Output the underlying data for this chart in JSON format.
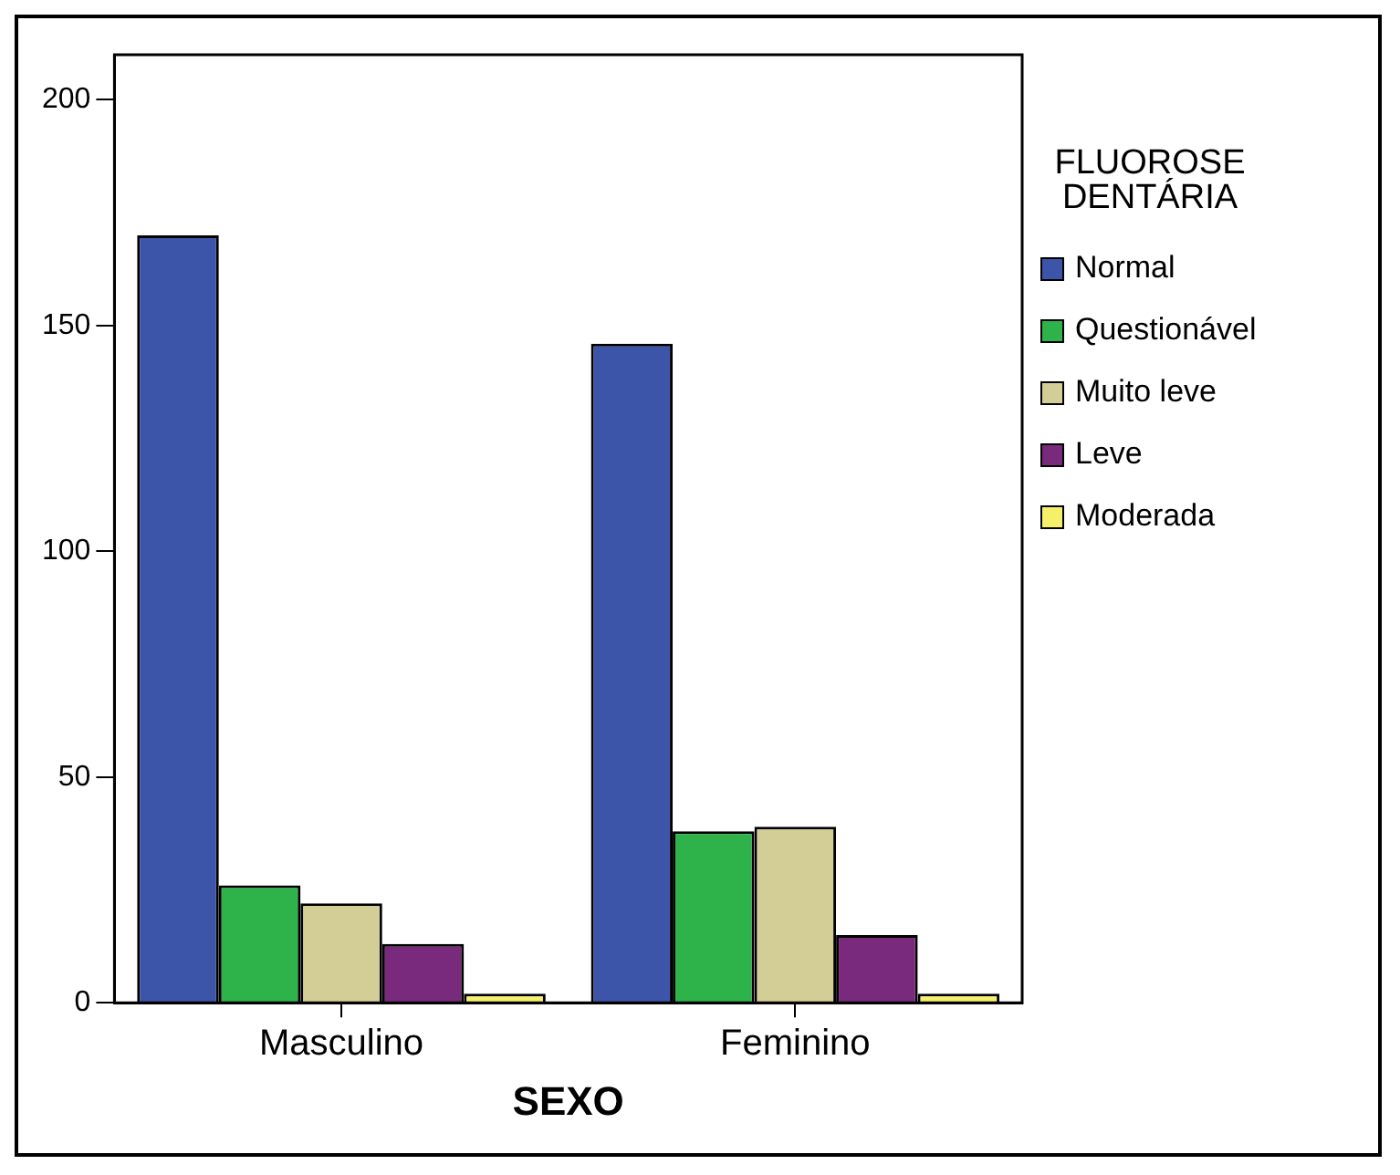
{
  "chart_data": {
    "type": "bar",
    "xlabel": "SEXO",
    "legend_title": "FLUOROSE DENTÁRIA",
    "categories": [
      "Masculino",
      "Feminino"
    ],
    "series": [
      {
        "name": "Normal",
        "color": "#3d55a8",
        "values": [
          170,
          146
        ]
      },
      {
        "name": "Questionável",
        "color": "#2db34a",
        "values": [
          26,
          38
        ]
      },
      {
        "name": "Muito leve",
        "color": "#d3cd96",
        "values": [
          22,
          39
        ]
      },
      {
        "name": "Leve",
        "color": "#7a2a7c",
        "values": [
          13,
          15
        ]
      },
      {
        "name": "Moderada",
        "color": "#f5f06a",
        "values": [
          2,
          2
        ]
      }
    ],
    "ylim": [
      0,
      210
    ],
    "yticks": [
      0,
      50,
      100,
      150,
      200
    ],
    "grid": false,
    "legend": "right"
  }
}
